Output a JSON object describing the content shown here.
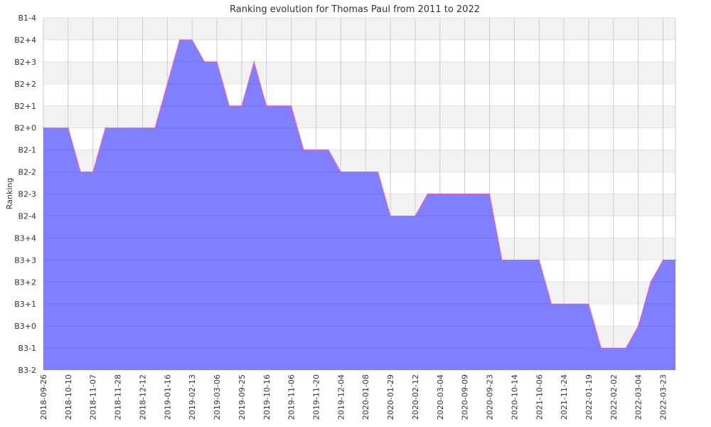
{
  "chart_data": {
    "type": "area",
    "title": "Ranking evolution for Thomas Paul from 2011 to 2022",
    "xlabel": "",
    "ylabel": "Ranking",
    "y_ticks": [
      "B1-4",
      "B2+4",
      "B2+3",
      "B2+2",
      "B2+1",
      "B2+0",
      "B2-1",
      "B2-2",
      "B2-3",
      "B2-4",
      "B3+4",
      "B3+3",
      "B3+2",
      "B3+1",
      "B3+0",
      "B3-1",
      "B3-2"
    ],
    "x_ticks": [
      "2018-09-26",
      "2018-10-10",
      "2018-11-07",
      "2018-11-28",
      "2018-12-12",
      "2019-01-16",
      "2019-02-13",
      "2019-03-06",
      "2019-09-25",
      "2019-10-16",
      "2019-11-06",
      "2019-11-20",
      "2019-12-04",
      "2020-01-08",
      "2020-01-29",
      "2020-02-12",
      "2020-03-04",
      "2020-09-09",
      "2020-09-23",
      "2020-10-14",
      "2021-10-06",
      "2021-11-24",
      "2022-01-19",
      "2022-02-02",
      "2022-03-04",
      "2022-03-23"
    ],
    "x_tick_positions": [
      0,
      2,
      4,
      6,
      8,
      10,
      12,
      14,
      16,
      18,
      20,
      22,
      24,
      26,
      28,
      30,
      32,
      34,
      36,
      38,
      40,
      42,
      44,
      46,
      48,
      50
    ],
    "points": [
      {
        "x": 0,
        "y": "B2+0"
      },
      {
        "x": 2,
        "y": "B2+0"
      },
      {
        "x": 3,
        "y": "B2-2"
      },
      {
        "x": 4,
        "y": "B2-2"
      },
      {
        "x": 5,
        "y": "B2+0"
      },
      {
        "x": 9,
        "y": "B2+0"
      },
      {
        "x": 10,
        "y": "B2+2"
      },
      {
        "x": 11,
        "y": "B2+4"
      },
      {
        "x": 12,
        "y": "B2+4"
      },
      {
        "x": 13,
        "y": "B2+3"
      },
      {
        "x": 14,
        "y": "B2+3"
      },
      {
        "x": 15,
        "y": "B2+1"
      },
      {
        "x": 16,
        "y": "B2+1"
      },
      {
        "x": 17,
        "y": "B2+3"
      },
      {
        "x": 18,
        "y": "B2+1"
      },
      {
        "x": 20,
        "y": "B2+1"
      },
      {
        "x": 21,
        "y": "B2-1"
      },
      {
        "x": 23,
        "y": "B2-1"
      },
      {
        "x": 24,
        "y": "B2-2"
      },
      {
        "x": 27,
        "y": "B2-2"
      },
      {
        "x": 28,
        "y": "B2-4"
      },
      {
        "x": 30,
        "y": "B2-4"
      },
      {
        "x": 31,
        "y": "B2-3"
      },
      {
        "x": 36,
        "y": "B2-3"
      },
      {
        "x": 37,
        "y": "B3+3"
      },
      {
        "x": 40,
        "y": "B3+3"
      },
      {
        "x": 41,
        "y": "B3+1"
      },
      {
        "x": 44,
        "y": "B3+1"
      },
      {
        "x": 45,
        "y": "B3-1"
      },
      {
        "x": 47,
        "y": "B3-1"
      },
      {
        "x": 48,
        "y": "B3+0"
      },
      {
        "x": 49,
        "y": "B3+2"
      },
      {
        "x": 50,
        "y": "B3+3"
      },
      {
        "x": 51,
        "y": "B3+3"
      }
    ],
    "x_range": [
      0,
      51
    ],
    "grid": true,
    "colors": {
      "fill": "#7f7fff",
      "line": "#ff66aa",
      "band_alt": "#f2f2f2",
      "grid": "#cccccc"
    }
  }
}
